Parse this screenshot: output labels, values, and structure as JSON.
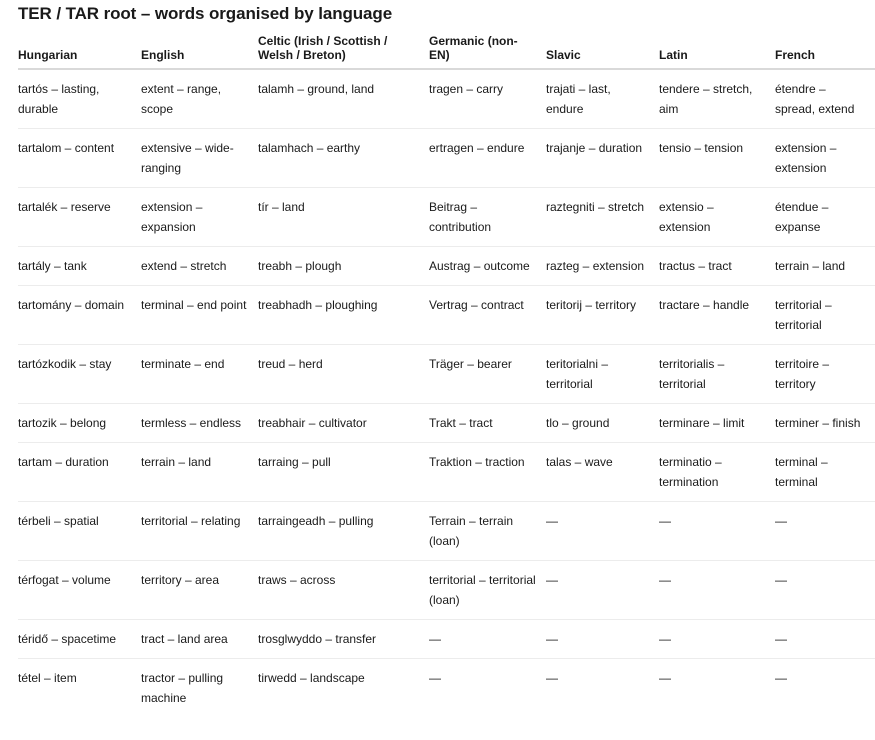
{
  "title": "TER / TAR root – words organised by language",
  "columns": [
    "Hungarian",
    "English",
    "Celtic (Irish / Scottish / Welsh / Breton)",
    "Germanic (non-EN)",
    "Slavic",
    "Latin",
    "French"
  ],
  "rows": [
    [
      "tartós – lasting, durable",
      "extent – range, scope",
      "talamh – ground, land",
      "tragen – carry",
      "trajati – last, endure",
      "tendere – stretch, aim",
      "étendre – spread, extend"
    ],
    [
      "tartalom – content",
      "extensive – wide-ranging",
      "talamhach – earthy",
      "ertragen – endure",
      "trajanje – duration",
      "tensio – tension",
      "extension – extension"
    ],
    [
      "tartalék – reserve",
      "extension – expansion",
      "tír – land",
      "Beitrag – contribution",
      "raztegniti – stretch",
      "extensio – extension",
      "étendue – expanse"
    ],
    [
      "tartály – tank",
      "extend – stretch",
      "treabh – plough",
      "Austrag – outcome",
      "razteg – extension",
      "tractus – tract",
      "terrain – land"
    ],
    [
      "tartomány – domain",
      "terminal – end point",
      "treabhadh – ploughing",
      "Vertrag – contract",
      "teritorij – territory",
      "tractare – handle",
      "territorial – territorial"
    ],
    [
      "tartózkodik – stay",
      "terminate – end",
      "treud – herd",
      "Träger – bearer",
      "teritorialni – territorial",
      "territorialis – territorial",
      "territoire – territory"
    ],
    [
      "tartozik – belong",
      "termless – endless",
      "treabhair – cultivator",
      "Trakt – tract",
      "tlo – ground",
      "terminare – limit",
      "terminer – finish"
    ],
    [
      "tartam – duration",
      "terrain – land",
      "tarraing – pull",
      "Traktion – traction",
      "talas – wave",
      "terminatio – termination",
      "terminal – terminal"
    ],
    [
      "térbeli – spatial",
      "territorial – relating",
      "tarraingeadh – pulling",
      "Terrain – terrain (loan)",
      "—",
      "—",
      "—"
    ],
    [
      "térfogat – volume",
      "territory – area",
      "traws – across",
      "territorial – territorial (loan)",
      "—",
      "—",
      "—"
    ],
    [
      "téridő – spacetime",
      "tract – land area",
      "trosglwyddo – transfer",
      "—",
      "—",
      "—",
      "—"
    ],
    [
      "tétel – item",
      "tractor – pulling machine",
      "tirwedd – landscape",
      "—",
      "—",
      "—",
      "—"
    ]
  ]
}
